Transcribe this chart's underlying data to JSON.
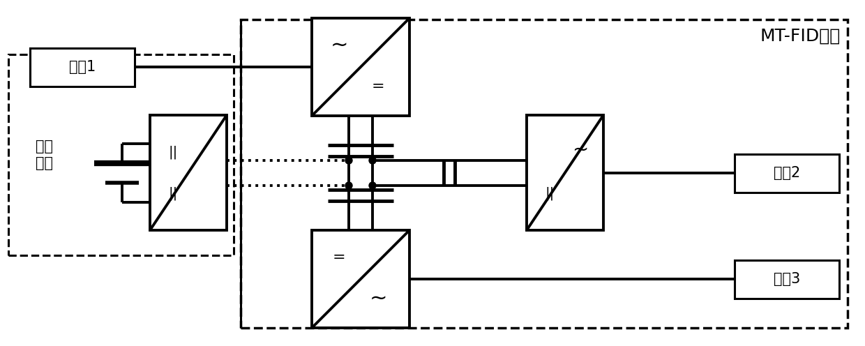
{
  "bg_color": "#ffffff",
  "line_color": "#000000",
  "label_feeder1": "馈线1",
  "label_feeder2": "馈线2",
  "label_feeder3": "馈线3",
  "label_storage_line1": "储能",
  "label_storage_line2": "装置",
  "label_mtfid": "MT-FID装置",
  "fig_width": 12.4,
  "fig_height": 4.96,
  "lw_main": 2.2,
  "lw_thick": 2.8,
  "lw_cap": 3.5,
  "dot_r": 0.05
}
